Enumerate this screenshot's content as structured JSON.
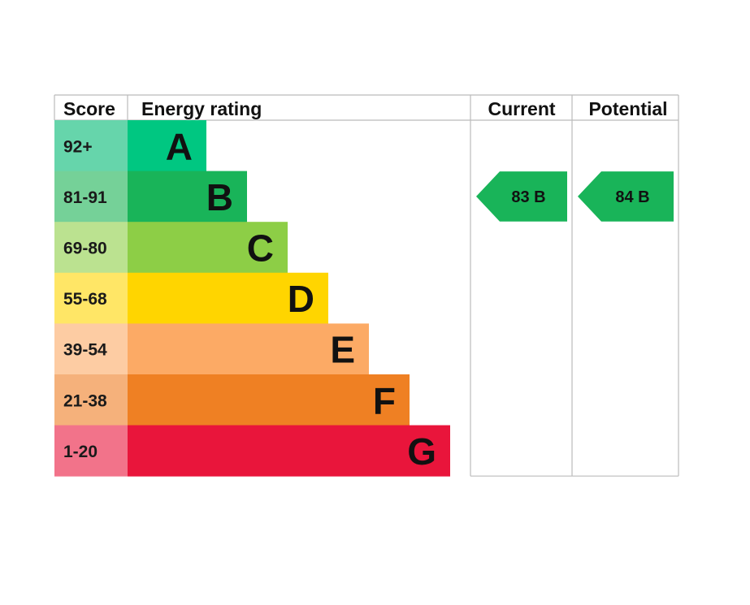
{
  "chart_data": {
    "type": "table",
    "headers": {
      "score": "Score",
      "rating": "Energy rating",
      "current": "Current",
      "potential": "Potential"
    },
    "bands": [
      {
        "score": "92+",
        "letter": "A",
        "color": "#00c781",
        "score_bg": "#66d5ab"
      },
      {
        "score": "81-91",
        "letter": "B",
        "color": "#19b459",
        "score_bg": "#75d198"
      },
      {
        "score": "69-80",
        "letter": "C",
        "color": "#8dce46",
        "score_bg": "#bbe290"
      },
      {
        "score": "55-68",
        "letter": "D",
        "color": "#ffd500",
        "score_bg": "#ffe666"
      },
      {
        "score": "39-54",
        "letter": "E",
        "color": "#fcaa65",
        "score_bg": "#fdcca3"
      },
      {
        "score": "21-38",
        "letter": "F",
        "color": "#ef8023",
        "score_bg": "#f5b17b"
      },
      {
        "score": "1-20",
        "letter": "G",
        "color": "#e9153b",
        "score_bg": "#f2738a"
      }
    ],
    "current": {
      "score": 83,
      "letter": "B",
      "label": "83  B",
      "color": "#19b459"
    },
    "potential": {
      "score": 84,
      "letter": "B",
      "label": "84  B",
      "color": "#19b459"
    },
    "grid_color": "#bbbbbb"
  }
}
